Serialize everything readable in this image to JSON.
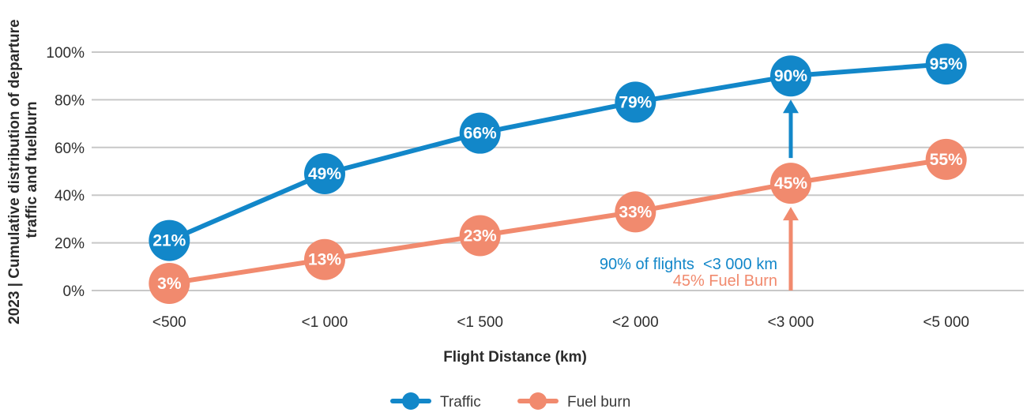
{
  "chart_data": {
    "type": "line",
    "title": "",
    "ylabel_line1": "2023 | Cumulative distribution of departure",
    "ylabel_line2": "traffic and fuelburn",
    "xlabel": "Flight Distance (km)",
    "categories": [
      "<500",
      "<1 000",
      "<1 500",
      "<2 000",
      "<3 000",
      "<5 000"
    ],
    "yticks": [
      "0%",
      "20%",
      "40%",
      "60%",
      "80%",
      "100%"
    ],
    "ylim": [
      0,
      100
    ],
    "grid": true,
    "legend_position": "bottom-center",
    "series": [
      {
        "name": "Traffic",
        "color": "#1287C9",
        "values": [
          21,
          49,
          66,
          79,
          90,
          95
        ],
        "labels": [
          "21%",
          "49%",
          "66%",
          "79%",
          "90%",
          "95%"
        ]
      },
      {
        "name": "Fuel burn",
        "color": "#F18A6E",
        "values": [
          3,
          13,
          23,
          33,
          45,
          55
        ],
        "labels": [
          "3%",
          "13%",
          "23%",
          "33%",
          "45%",
          "55%"
        ]
      }
    ],
    "annotation": {
      "traffic_text": "90% of flights  <3 000 km",
      "fuel_text": "45% Fuel Burn",
      "at_category_index": 4,
      "traffic_value": 90,
      "fuel_value": 45
    }
  },
  "colors": {
    "traffic_blue": "#1287C9",
    "fuel_orange": "#F18A6E",
    "gridline": "#C8C8C8",
    "axis_text": "#2E2E2E",
    "marker_label_text": "#FFFFFF"
  }
}
